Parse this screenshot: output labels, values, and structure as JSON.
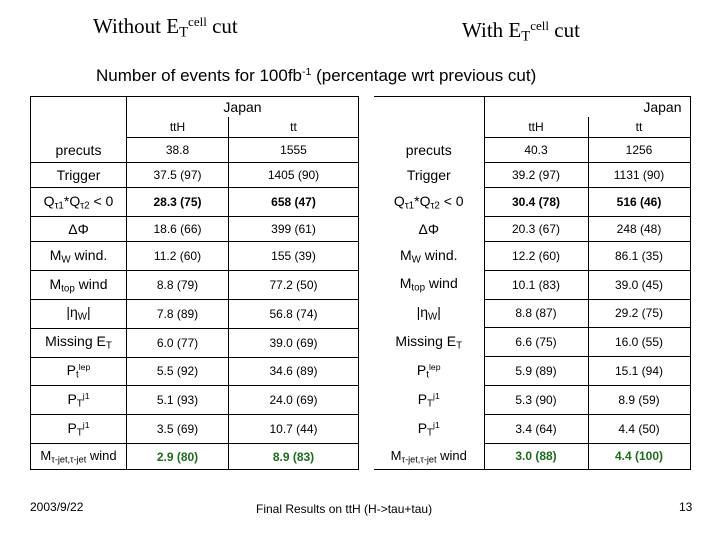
{
  "titles": {
    "left_prefix": "Without E",
    "left_sub": "T",
    "left_sup": "cell",
    "left_suffix": " cut",
    "right_prefix": "With E",
    "right_sub": "T",
    "right_sup": "cell",
    "right_suffix": " cut"
  },
  "subtitle": {
    "prefix": "Number of events for 100fb",
    "sup": "-1",
    "suffix": " (percentage wrt previous cut)"
  },
  "left": {
    "group": "Japan",
    "col1": "ttH",
    "col2": "tt",
    "rows": [
      {
        "v1": "38.8",
        "v2": "1555"
      },
      {
        "v1": "37.5 (97)",
        "v2": "1405 (90)"
      },
      {
        "v1": "28.3 (75)",
        "v2": "658 (47)"
      },
      {
        "v1": "18.6 (66)",
        "v2": "399 (61)"
      },
      {
        "v1": "11.2 (60)",
        "v2": "155 (39)"
      },
      {
        "v1": "8.8 (79)",
        "v2": "77.2 (50)"
      },
      {
        "v1": "7.8 (89)",
        "v2": "56.8 (74)"
      },
      {
        "v1": "6.0 (77)",
        "v2": "39.0 (69)"
      },
      {
        "v1": "5.5 (92)",
        "v2": "34.6 (89)"
      },
      {
        "v1": "5.1 (93)",
        "v2": "24.0 (69)"
      },
      {
        "v1": "3.5 (69)",
        "v2": "10.7 (44)"
      },
      {
        "v1": "2.9 (80)",
        "v2": "8.9 (83)"
      }
    ]
  },
  "right": {
    "group": "Japan",
    "col1": "ttH",
    "col2": "tt",
    "rows": [
      {
        "v1": "40.3",
        "v2": "1256"
      },
      {
        "v1": "39.2 (97)",
        "v2": "1131 (90)"
      },
      {
        "v1": "30.4 (78)",
        "v2": "516 (46)"
      },
      {
        "v1": "20.3 (67)",
        "v2": "248 (48)"
      },
      {
        "v1": "12.2 (60)",
        "v2": "86.1 (35)"
      },
      {
        "v1": "10.1 (83)",
        "v2": "39.0 (45)"
      },
      {
        "v1": "8.8 (87)",
        "v2": "29.2 (75)"
      },
      {
        "v1": "6.6 (75)",
        "v2": "16.0 (55)"
      },
      {
        "v1": "5.9 (89)",
        "v2": "15.1 (94)"
      },
      {
        "v1": "5.3 (90)",
        "v2": "8.9 (59)"
      },
      {
        "v1": "3.4 (64)",
        "v2": "4.4 (50)"
      },
      {
        "v1": "3.0 (88)",
        "v2": "4.4 (100)"
      }
    ]
  },
  "labels": {
    "precuts": "precuts",
    "trigger": "Trigger",
    "q": "Q",
    "q_sub1": "τ1",
    "q_mid": "*Q",
    "q_sub2": "τ2",
    "q_tail": " < 0",
    "dphi": "ΔΦ",
    "mw_main": "M",
    "mw_sub": "W",
    "mw_tail": " wind.",
    "mtop_main": "M",
    "mtop_sub": "top",
    "mtop_tail": " wind",
    "eta_open": "|η",
    "eta_sub": "W",
    "eta_close": "|",
    "missing_main": "Missing E",
    "missing_sub": "T",
    "ptlep_main": "P",
    "ptlep_sub": "t",
    "ptlep_sup": "lep",
    "ptj1_main": "P",
    "ptj1_sub": "T",
    "ptj1_sup": "j1",
    "mtau_main": "M",
    "mtau_sub": "τ-jet,τ-jet",
    "mtau_tail": " wind"
  },
  "footer": {
    "date": "2003/9/22",
    "center": "Final Results on ttH (H->tau+tau)",
    "page": "13"
  },
  "colors": {
    "highlight_green": "#1d6b1d"
  }
}
